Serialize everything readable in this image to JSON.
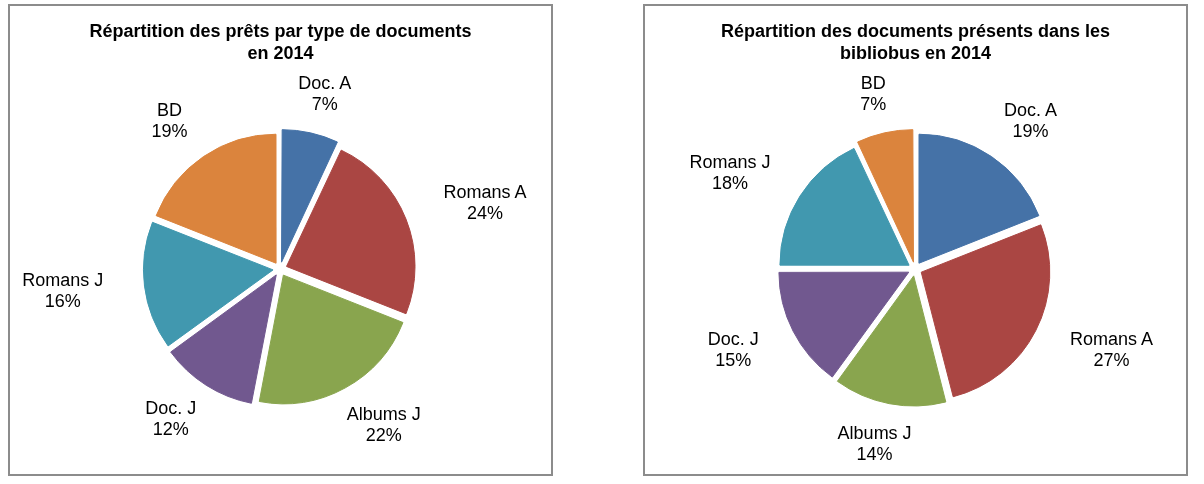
{
  "chart_data": [
    {
      "type": "pie",
      "title": "Répartition des prêts par type de documents en 2014",
      "categories": [
        "Doc. A",
        "Romans A",
        "Albums J",
        "Doc. J",
        "Romans J",
        "BD"
      ],
      "values": [
        7,
        24,
        22,
        12,
        16,
        19
      ],
      "value_labels": [
        "7%",
        "24%",
        "22%",
        "12%",
        "16%",
        "19%"
      ],
      "colors": [
        "#4572a7",
        "#aa4643",
        "#89a54e",
        "#71588f",
        "#4198af",
        "#db843d"
      ],
      "legend": false
    },
    {
      "type": "pie",
      "title": "Répartition des documents présents dans les bibliobus en 2014",
      "categories": [
        "Doc. A",
        "Romans A",
        "Albums J",
        "Doc. J",
        "Romans J",
        "BD"
      ],
      "values": [
        19,
        27,
        14,
        15,
        18,
        7
      ],
      "value_labels": [
        "19%",
        "27%",
        "14%",
        "15%",
        "18%",
        "7%"
      ],
      "colors": [
        "#4572a7",
        "#aa4643",
        "#89a54e",
        "#71588f",
        "#4198af",
        "#db843d"
      ],
      "legend": false
    }
  ]
}
